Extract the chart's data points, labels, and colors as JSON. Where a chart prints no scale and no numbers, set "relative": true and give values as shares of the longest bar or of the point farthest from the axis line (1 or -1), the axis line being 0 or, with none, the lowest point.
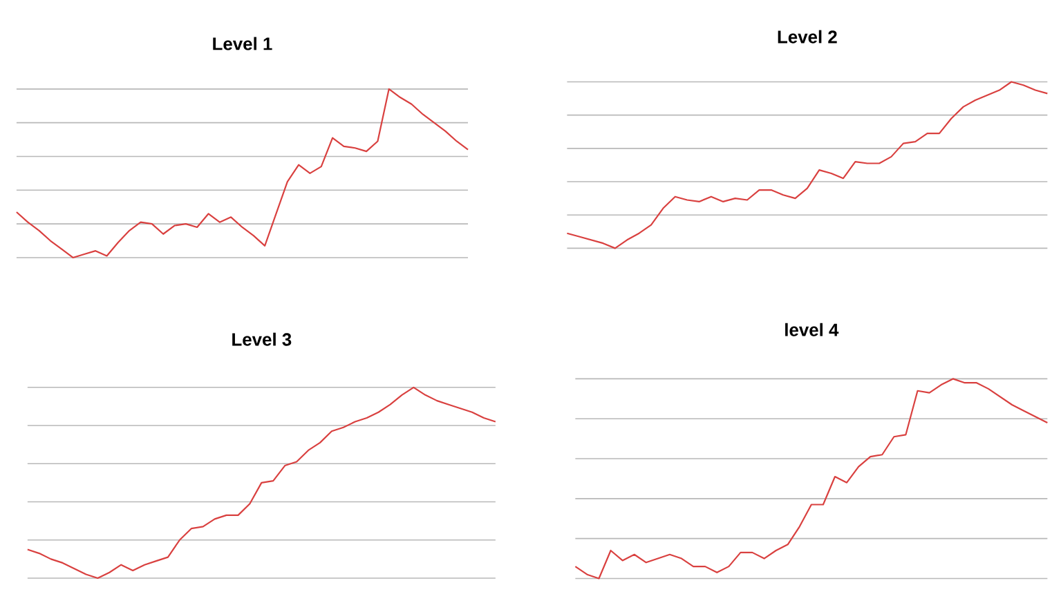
{
  "chart_data": [
    {
      "type": "line",
      "title": "Level 1",
      "relative": true,
      "tick_labels": false,
      "grid": "y",
      "color": "#d9403f",
      "categories": [
        null,
        null,
        null,
        null,
        null,
        null,
        null,
        null,
        null,
        null,
        null,
        null,
        null,
        null,
        null,
        null,
        null,
        null,
        null,
        null,
        null,
        null,
        null,
        null,
        null,
        null,
        null,
        null,
        null,
        null,
        null,
        null,
        null,
        null,
        null,
        null,
        null,
        null,
        null,
        null,
        null
      ],
      "values": [
        0.27,
        0.21,
        0.16,
        0.1,
        0.05,
        0,
        0.02,
        0.04,
        0.01,
        0.09,
        0.16,
        0.21,
        0.2,
        0.14,
        0.19,
        0.2,
        0.18,
        0.26,
        0.21,
        0.24,
        0.18,
        0.13,
        0.07,
        0.26,
        0.45,
        0.55,
        0.5,
        0.54,
        0.71,
        0.66,
        0.65,
        0.63,
        0.69,
        1,
        0.95,
        0.91,
        0.85,
        0.8,
        0.75,
        0.69,
        0.64
      ]
    },
    {
      "type": "line",
      "title": "Level 2",
      "relative": true,
      "tick_labels": false,
      "grid": "y",
      "color": "#d9403f",
      "categories": [
        null,
        null,
        null,
        null,
        null,
        null,
        null,
        null,
        null,
        null,
        null,
        null,
        null,
        null,
        null,
        null,
        null,
        null,
        null,
        null,
        null,
        null,
        null,
        null,
        null,
        null,
        null,
        null,
        null,
        null,
        null,
        null,
        null,
        null,
        null,
        null,
        null,
        null,
        null,
        null,
        null
      ],
      "values": [
        0.09,
        0.07,
        0.05,
        0.03,
        0,
        0.05,
        0.09,
        0.14,
        0.24,
        0.31,
        0.29,
        0.28,
        0.31,
        0.28,
        0.3,
        0.29,
        0.35,
        0.35,
        0.32,
        0.3,
        0.36,
        0.47,
        0.45,
        0.42,
        0.52,
        0.51,
        0.51,
        0.55,
        0.63,
        0.64,
        0.69,
        0.69,
        0.78,
        0.85,
        0.89,
        0.92,
        0.95,
        1,
        0.98,
        0.95,
        0.93
      ]
    },
    {
      "type": "line",
      "title": "Level 3",
      "relative": true,
      "tick_labels": false,
      "grid": "y",
      "color": "#d9403f",
      "categories": [
        null,
        null,
        null,
        null,
        null,
        null,
        null,
        null,
        null,
        null,
        null,
        null,
        null,
        null,
        null,
        null,
        null,
        null,
        null,
        null,
        null,
        null,
        null,
        null,
        null,
        null,
        null,
        null,
        null,
        null,
        null,
        null,
        null,
        null,
        null,
        null,
        null,
        null,
        null,
        null,
        null
      ],
      "values": [
        0.15,
        0.13,
        0.1,
        0.08,
        0.05,
        0.02,
        0,
        0.03,
        0.07,
        0.04,
        0.07,
        0.09,
        0.11,
        0.2,
        0.26,
        0.27,
        0.31,
        0.33,
        0.33,
        0.39,
        0.5,
        0.51,
        0.59,
        0.61,
        0.67,
        0.71,
        0.77,
        0.79,
        0.82,
        0.84,
        0.87,
        0.91,
        0.96,
        1,
        0.96,
        0.93,
        0.91,
        0.89,
        0.87,
        0.84,
        0.82
      ]
    },
    {
      "type": "line",
      "title": "level 4",
      "relative": true,
      "tick_labels": false,
      "grid": "y",
      "color": "#d9403f",
      "categories": [
        null,
        null,
        null,
        null,
        null,
        null,
        null,
        null,
        null,
        null,
        null,
        null,
        null,
        null,
        null,
        null,
        null,
        null,
        null,
        null,
        null,
        null,
        null,
        null,
        null,
        null,
        null,
        null,
        null,
        null,
        null,
        null,
        null,
        null,
        null,
        null,
        null,
        null,
        null,
        null,
        null
      ],
      "values": [
        0.06,
        0.02,
        0,
        0.14,
        0.09,
        0.12,
        0.08,
        0.1,
        0.12,
        0.1,
        0.06,
        0.06,
        0.03,
        0.06,
        0.13,
        0.13,
        0.1,
        0.14,
        0.17,
        0.26,
        0.37,
        0.37,
        0.51,
        0.48,
        0.56,
        0.61,
        0.62,
        0.71,
        0.72,
        0.94,
        0.93,
        0.97,
        1,
        0.98,
        0.98,
        0.95,
        0.91,
        0.87,
        0.84,
        0.81,
        0.78
      ]
    }
  ]
}
